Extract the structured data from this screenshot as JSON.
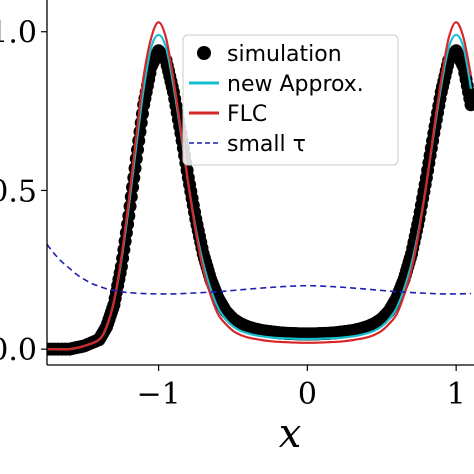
{
  "chart_data": {
    "type": "line",
    "xlabel": "x",
    "ylabel": "",
    "xlim": [
      -1.75,
      1.12
    ],
    "ylim": [
      -0.05,
      1.1
    ],
    "x_ticks": [
      {
        "value": -1,
        "label": "−1"
      },
      {
        "value": 0,
        "label": "0"
      },
      {
        "value": 1,
        "label": "1"
      }
    ],
    "y_ticks": [
      {
        "value": 0.0,
        "label": "0.0"
      },
      {
        "value": 0.5,
        "label": "0.5"
      },
      {
        "value": 1.0,
        "label": "1.0"
      }
    ],
    "legend": {
      "placement": "top-right",
      "entries": [
        {
          "label": "simulation",
          "marker": "dot",
          "color": "#000000"
        },
        {
          "label": "new Approx.",
          "marker": "line",
          "color": "#17becf"
        },
        {
          "label": "FLC",
          "marker": "line",
          "color": "#d62728"
        },
        {
          "label": "small τ",
          "marker": "dashed",
          "color": "#1f1fb4"
        }
      ]
    },
    "series": [
      {
        "name": "simulation",
        "style": "markers",
        "color": "#000000",
        "x": [
          -1.75,
          -1.6,
          -1.5,
          -1.4,
          -1.35,
          -1.3,
          -1.25,
          -1.2,
          -1.15,
          -1.1,
          -1.05,
          -1.0,
          -0.95,
          -0.9,
          -0.85,
          -0.8,
          -0.75,
          -0.7,
          -0.65,
          -0.6,
          -0.55,
          -0.5,
          -0.45,
          -0.4,
          -0.35,
          -0.3,
          -0.25,
          -0.2,
          -0.15,
          -0.1,
          -0.05,
          0.0,
          0.05,
          0.1,
          0.15,
          0.2,
          0.25,
          0.3,
          0.35,
          0.4,
          0.45,
          0.5,
          0.55,
          0.6,
          0.65,
          0.7,
          0.75,
          0.8,
          0.85,
          0.9,
          0.95,
          1.0,
          1.05,
          1.1
        ],
        "y": [
          0.0,
          0.0,
          0.01,
          0.03,
          0.07,
          0.14,
          0.26,
          0.42,
          0.6,
          0.77,
          0.89,
          0.94,
          0.91,
          0.81,
          0.68,
          0.54,
          0.41,
          0.3,
          0.22,
          0.16,
          0.12,
          0.095,
          0.08,
          0.07,
          0.063,
          0.058,
          0.055,
          0.052,
          0.05,
          0.049,
          0.048,
          0.048,
          0.048,
          0.049,
          0.05,
          0.052,
          0.055,
          0.058,
          0.063,
          0.07,
          0.08,
          0.095,
          0.12,
          0.16,
          0.22,
          0.3,
          0.41,
          0.54,
          0.68,
          0.81,
          0.91,
          0.94,
          0.89,
          0.77
        ]
      },
      {
        "name": "new Approx.",
        "style": "solid",
        "color": "#17becf",
        "x": [
          -1.75,
          -1.6,
          -1.5,
          -1.4,
          -1.35,
          -1.3,
          -1.25,
          -1.2,
          -1.15,
          -1.1,
          -1.05,
          -1.0,
          -0.95,
          -0.9,
          -0.85,
          -0.8,
          -0.75,
          -0.7,
          -0.65,
          -0.6,
          -0.55,
          -0.5,
          -0.45,
          -0.4,
          -0.35,
          -0.3,
          -0.25,
          -0.2,
          -0.15,
          -0.1,
          -0.05,
          0.0,
          0.05,
          0.1,
          0.15,
          0.2,
          0.25,
          0.3,
          0.35,
          0.4,
          0.45,
          0.5,
          0.55,
          0.6,
          0.65,
          0.7,
          0.75,
          0.8,
          0.85,
          0.9,
          0.95,
          1.0,
          1.05,
          1.1
        ],
        "y": [
          0.0,
          0.0,
          0.01,
          0.03,
          0.07,
          0.15,
          0.28,
          0.45,
          0.64,
          0.82,
          0.95,
          0.99,
          0.95,
          0.83,
          0.68,
          0.52,
          0.38,
          0.27,
          0.19,
          0.13,
          0.095,
          0.072,
          0.058,
          0.05,
          0.044,
          0.04,
          0.037,
          0.035,
          0.034,
          0.033,
          0.032,
          0.032,
          0.032,
          0.033,
          0.034,
          0.035,
          0.037,
          0.04,
          0.044,
          0.05,
          0.058,
          0.072,
          0.095,
          0.13,
          0.19,
          0.27,
          0.38,
          0.52,
          0.68,
          0.83,
          0.95,
          0.99,
          0.95,
          0.82
        ]
      },
      {
        "name": "FLC",
        "style": "solid",
        "color": "#d62728",
        "x": [
          -1.75,
          -1.6,
          -1.5,
          -1.4,
          -1.35,
          -1.3,
          -1.25,
          -1.2,
          -1.15,
          -1.1,
          -1.05,
          -1.0,
          -0.95,
          -0.9,
          -0.85,
          -0.8,
          -0.75,
          -0.7,
          -0.65,
          -0.6,
          -0.55,
          -0.5,
          -0.45,
          -0.4,
          -0.35,
          -0.3,
          -0.25,
          -0.2,
          -0.15,
          -0.1,
          -0.05,
          0.0,
          0.05,
          0.1,
          0.15,
          0.2,
          0.25,
          0.3,
          0.35,
          0.4,
          0.45,
          0.5,
          0.55,
          0.6,
          0.65,
          0.7,
          0.75,
          0.8,
          0.85,
          0.9,
          0.95,
          1.0,
          1.05,
          1.1
        ],
        "y": [
          0.0,
          0.0,
          0.01,
          0.03,
          0.07,
          0.15,
          0.29,
          0.47,
          0.67,
          0.86,
          0.98,
          1.03,
          0.98,
          0.85,
          0.69,
          0.52,
          0.37,
          0.25,
          0.17,
          0.11,
          0.08,
          0.058,
          0.045,
          0.037,
          0.032,
          0.028,
          0.025,
          0.023,
          0.022,
          0.021,
          0.02,
          0.02,
          0.02,
          0.021,
          0.022,
          0.023,
          0.025,
          0.028,
          0.032,
          0.037,
          0.045,
          0.058,
          0.08,
          0.11,
          0.17,
          0.25,
          0.37,
          0.52,
          0.69,
          0.85,
          0.98,
          1.03,
          0.98,
          0.86
        ]
      },
      {
        "name": "small τ",
        "style": "dashed",
        "color": "#1f1fb4",
        "x": [
          -1.75,
          -1.7,
          -1.65,
          -1.6,
          -1.55,
          -1.5,
          -1.45,
          -1.4,
          -1.35,
          -1.3,
          -1.25,
          -1.2,
          -1.1,
          -1.0,
          -0.9,
          -0.8,
          -0.6,
          -0.4,
          -0.2,
          0.0,
          0.2,
          0.4,
          0.6,
          0.8,
          0.9,
          1.0,
          1.1
        ],
        "y": [
          0.33,
          0.3,
          0.275,
          0.255,
          0.235,
          0.22,
          0.207,
          0.198,
          0.19,
          0.185,
          0.181,
          0.178,
          0.175,
          0.174,
          0.174,
          0.176,
          0.181,
          0.189,
          0.196,
          0.2,
          0.196,
          0.189,
          0.181,
          0.176,
          0.174,
          0.174,
          0.175
        ]
      }
    ]
  }
}
